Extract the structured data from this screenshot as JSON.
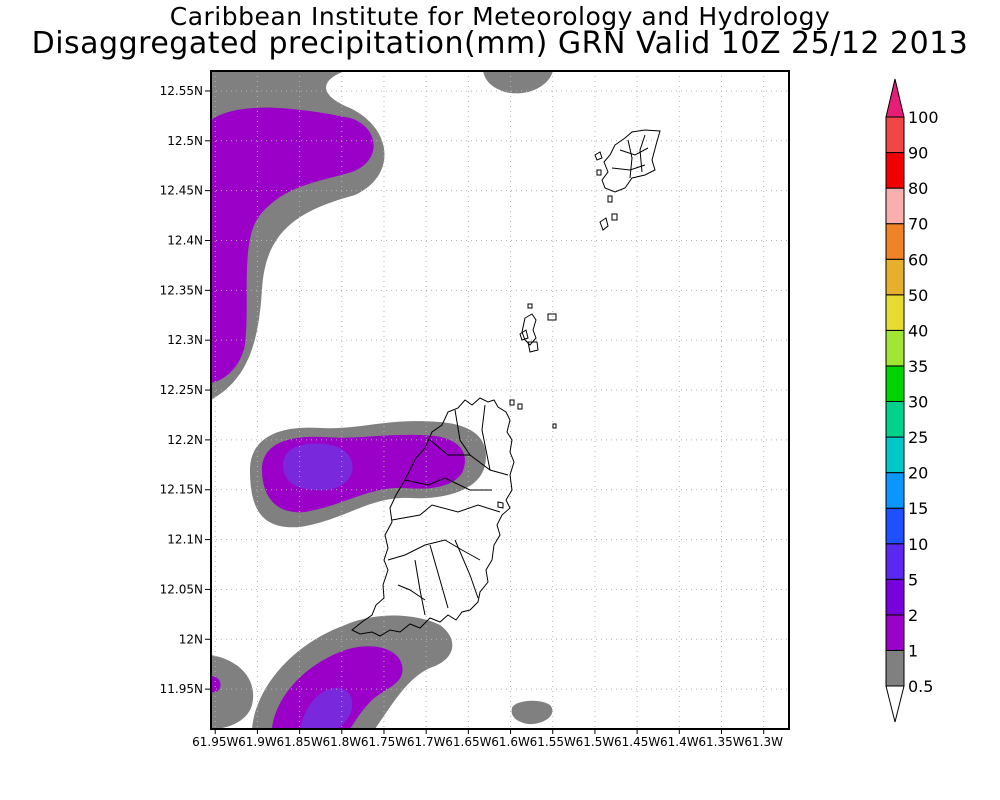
{
  "header": {
    "title_line1": "Caribbean Institute for Meteorology and Hydrology",
    "title_line2": "Disaggregated precipitation(mm) GRN Valid 10Z 25/12 2013"
  },
  "map": {
    "lat_range": [
      11.91,
      12.57
    ],
    "lon_range": [
      -61.955,
      -61.27
    ],
    "lat_ticks": [
      {
        "value": 12.55,
        "label": "12.55N"
      },
      {
        "value": 12.5,
        "label": "12.5N"
      },
      {
        "value": 12.45,
        "label": "12.45N"
      },
      {
        "value": 12.4,
        "label": "12.4N"
      },
      {
        "value": 12.35,
        "label": "12.35N"
      },
      {
        "value": 12.3,
        "label": "12.3N"
      },
      {
        "value": 12.25,
        "label": "12.25N"
      },
      {
        "value": 12.2,
        "label": "12.2N"
      },
      {
        "value": 12.15,
        "label": "12.15N"
      },
      {
        "value": 12.1,
        "label": "12.1N"
      },
      {
        "value": 12.05,
        "label": "12.05N"
      },
      {
        "value": 12.0,
        "label": "12N"
      },
      {
        "value": 11.95,
        "label": "11.95N"
      }
    ],
    "lon_ticks": [
      {
        "value": -61.95,
        "label": "61.95W"
      },
      {
        "value": -61.9,
        "label": "61.9W"
      },
      {
        "value": -61.85,
        "label": "61.85W"
      },
      {
        "value": -61.8,
        "label": "61.8W"
      },
      {
        "value": -61.75,
        "label": "61.75W"
      },
      {
        "value": -61.7,
        "label": "61.7W"
      },
      {
        "value": -61.65,
        "label": "61.65W"
      },
      {
        "value": -61.6,
        "label": "61.6W"
      },
      {
        "value": -61.55,
        "label": "61.55W"
      },
      {
        "value": -61.5,
        "label": "61.5W"
      },
      {
        "value": -61.45,
        "label": "61.45W"
      },
      {
        "value": -61.4,
        "label": "61.4W"
      },
      {
        "value": -61.35,
        "label": "61.35W"
      },
      {
        "value": -61.3,
        "label": "61.3W"
      }
    ],
    "grid": true,
    "colors": {
      "band_0_5_to_1": "#808080",
      "band_1_to_2": "#9a00c8",
      "band_2_to_5": "#7a28dc",
      "coastline": "#000000"
    }
  },
  "legend": {
    "placement": "right",
    "levels": [
      {
        "label": "0.5",
        "color": "#ffffff"
      },
      {
        "label": "1",
        "color": "#808080"
      },
      {
        "label": "2",
        "color": "#9a00c8"
      },
      {
        "label": "5",
        "color": "#7800dc"
      },
      {
        "label": "10",
        "color": "#5a28f0"
      },
      {
        "label": "15",
        "color": "#1e50ff"
      },
      {
        "label": "20",
        "color": "#0a96ff"
      },
      {
        "label": "25",
        "color": "#00c8c8"
      },
      {
        "label": "30",
        "color": "#00d28c"
      },
      {
        "label": "35",
        "color": "#00d200"
      },
      {
        "label": "40",
        "color": "#a0e632"
      },
      {
        "label": "50",
        "color": "#e6dc32"
      },
      {
        "label": "60",
        "color": "#e6af2d"
      },
      {
        "label": "70",
        "color": "#f08228"
      },
      {
        "label": "80",
        "color": "#faafaf"
      },
      {
        "label": "90",
        "color": "#f00000"
      },
      {
        "label": "100",
        "color": "#f04646"
      }
    ],
    "top_arrow_color": "#e61e78",
    "bottom_arrow_color": "#ffffff"
  }
}
